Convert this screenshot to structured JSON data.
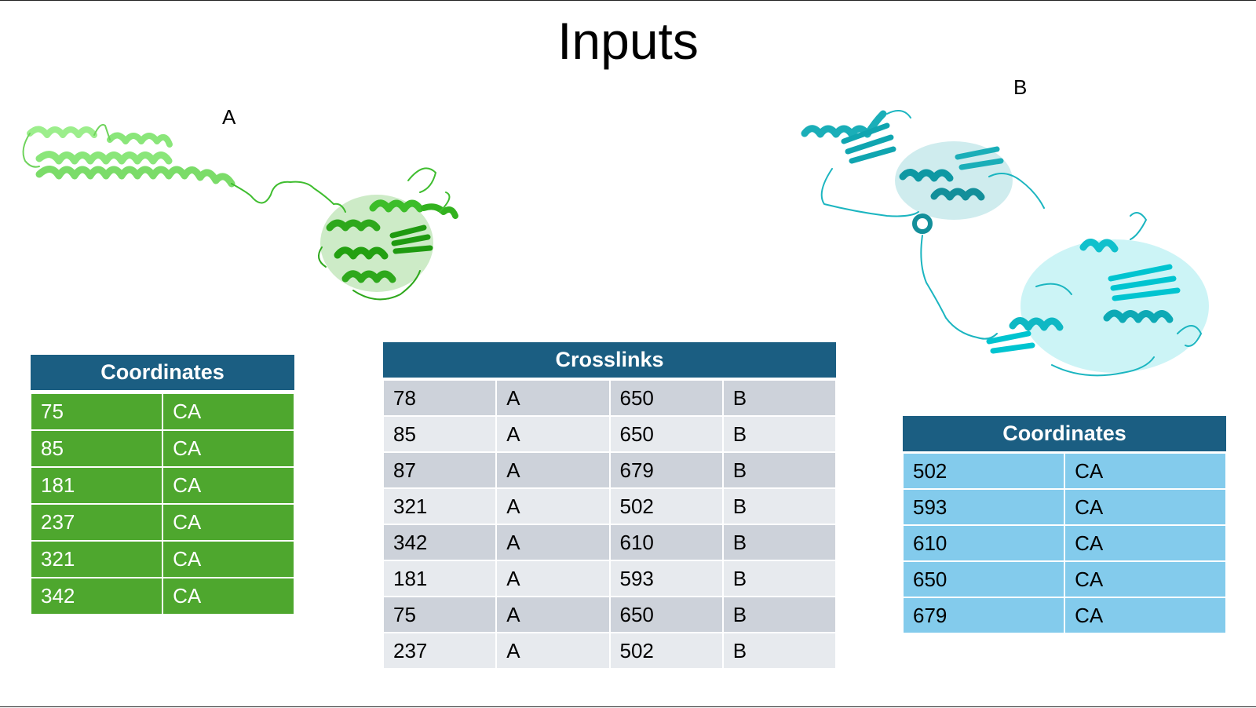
{
  "slide": {
    "title": "Inputs",
    "protein_a_label": "A",
    "protein_b_label": "B"
  },
  "colors": {
    "protein_a": "#4ea72e",
    "protein_b": "#00c8d2",
    "header": "#1b5e82",
    "coords_a_fill": "#4ea72e",
    "coords_b_fill": "#83cbec"
  },
  "coords_a": {
    "header": "Coordinates",
    "rows": [
      [
        "75",
        "CA"
      ],
      [
        "85",
        "CA"
      ],
      [
        "181",
        "CA"
      ],
      [
        "237",
        "CA"
      ],
      [
        "321",
        "CA"
      ],
      [
        "342",
        "CA"
      ]
    ]
  },
  "crosslinks": {
    "header": "Crosslinks",
    "rows": [
      [
        "78",
        "A",
        "650",
        "B"
      ],
      [
        "85",
        "A",
        "650",
        "B"
      ],
      [
        "87",
        "A",
        "679",
        "B"
      ],
      [
        "321",
        "A",
        "502",
        "B"
      ],
      [
        "342",
        "A",
        "610",
        "B"
      ],
      [
        "181",
        "A",
        "593",
        "B"
      ],
      [
        "75",
        "A",
        "650",
        "B"
      ],
      [
        "237",
        "A",
        "502",
        "B"
      ]
    ]
  },
  "coords_b": {
    "header": "Coordinates",
    "rows": [
      [
        "502",
        "CA"
      ],
      [
        "593",
        "CA"
      ],
      [
        "610",
        "CA"
      ],
      [
        "650",
        "CA"
      ],
      [
        "679",
        "CA"
      ]
    ]
  }
}
